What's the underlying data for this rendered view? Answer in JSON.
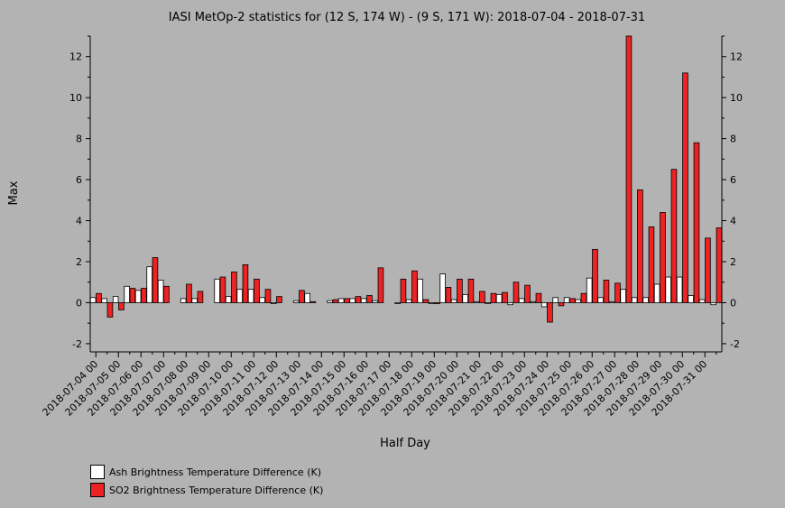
{
  "chart_data": {
    "type": "bar",
    "title": "IASI MetOp-2 statistics for (12 S, 174 W) - (9 S, 171 W): 2018-07-04 - 2018-07-31",
    "xlabel": "Half Day",
    "ylabel": "Max",
    "ylim": [
      -2.4,
      13
    ],
    "yticks": [
      -2,
      0,
      2,
      4,
      6,
      8,
      10,
      12
    ],
    "xticks": [
      "2018-07-04 00",
      "2018-07-05 00",
      "2018-07-06 00",
      "2018-07-07 00",
      "2018-07-08 00",
      "2018-07-09 00",
      "2018-07-10 00",
      "2018-07-11 00",
      "2018-07-12 00",
      "2018-07-13 00",
      "2018-07-14 00",
      "2018-07-15 00",
      "2018-07-16 00",
      "2018-07-17 00",
      "2018-07-18 00",
      "2018-07-19 00",
      "2018-07-20 00",
      "2018-07-21 00",
      "2018-07-22 00",
      "2018-07-23 00",
      "2018-07-24 00",
      "2018-07-25 00",
      "2018-07-26 00",
      "2018-07-27 00",
      "2018-07-28 00",
      "2018-07-29 00",
      "2018-07-30 00",
      "2018-07-31 00"
    ],
    "x": [
      "2018-07-04 00",
      "2018-07-04 12",
      "2018-07-05 00",
      "2018-07-05 12",
      "2018-07-06 00",
      "2018-07-06 12",
      "2018-07-07 00",
      "2018-07-07 12",
      "2018-07-08 00",
      "2018-07-08 12",
      "2018-07-09 00",
      "2018-07-09 12",
      "2018-07-10 00",
      "2018-07-10 12",
      "2018-07-11 00",
      "2018-07-11 12",
      "2018-07-12 00",
      "2018-07-12 12",
      "2018-07-13 00",
      "2018-07-13 12",
      "2018-07-14 00",
      "2018-07-14 12",
      "2018-07-15 00",
      "2018-07-15 12",
      "2018-07-16 00",
      "2018-07-16 12",
      "2018-07-17 00",
      "2018-07-17 12",
      "2018-07-18 00",
      "2018-07-18 12",
      "2018-07-19 00",
      "2018-07-19 12",
      "2018-07-20 00",
      "2018-07-20 12",
      "2018-07-21 00",
      "2018-07-21 12",
      "2018-07-22 00",
      "2018-07-22 12",
      "2018-07-23 00",
      "2018-07-23 12",
      "2018-07-24 00",
      "2018-07-24 12",
      "2018-07-25 00",
      "2018-07-25 12",
      "2018-07-26 00",
      "2018-07-26 12",
      "2018-07-27 00",
      "2018-07-27 12",
      "2018-07-28 00",
      "2018-07-28 12",
      "2018-07-29 00",
      "2018-07-29 12",
      "2018-07-30 00",
      "2018-07-30 12",
      "2018-07-31 00",
      "2018-07-31 12"
    ],
    "series": [
      {
        "name": "Ash Brightness Temperature Difference (K)",
        "color": "#ffffff",
        "values": [
          0.25,
          0.2,
          0.3,
          0.8,
          0.6,
          1.75,
          1.1,
          null,
          0.2,
          0.2,
          null,
          1.15,
          0.3,
          0.65,
          0.65,
          0.25,
          -0.05,
          null,
          0.1,
          0.45,
          null,
          0.1,
          0.2,
          0.2,
          0.2,
          0.1,
          null,
          -0.05,
          0.15,
          1.15,
          -0.05,
          1.4,
          0.15,
          0.4,
          0.05,
          -0.05,
          0.4,
          -0.1,
          0.2,
          0.05,
          -0.2,
          0.25,
          0.25,
          0.15,
          1.2,
          0.25,
          0.05,
          0.65,
          0.25,
          0.25,
          0.9,
          1.25,
          1.25,
          0.35,
          0.15,
          -0.1
        ]
      },
      {
        "name": "SO2 Brightness Temperature Difference (K)",
        "color": "#ee2222",
        "values": [
          0.45,
          -0.7,
          -0.35,
          0.7,
          0.7,
          2.2,
          0.8,
          null,
          0.9,
          0.55,
          null,
          1.25,
          1.5,
          1.85,
          1.15,
          0.65,
          0.3,
          null,
          0.6,
          0.05,
          null,
          0.15,
          0.2,
          0.3,
          0.35,
          1.7,
          null,
          1.15,
          1.55,
          0.15,
          0.0,
          0.75,
          1.15,
          1.15,
          0.55,
          0.45,
          0.5,
          1.0,
          0.85,
          0.45,
          -0.95,
          -0.15,
          0.2,
          0.45,
          2.6,
          1.1,
          0.95,
          13.0,
          5.5,
          3.7,
          4.4,
          6.5,
          11.2,
          7.8,
          3.15,
          3.65
        ]
      }
    ],
    "grid": false,
    "legend": "bottom-left"
  }
}
